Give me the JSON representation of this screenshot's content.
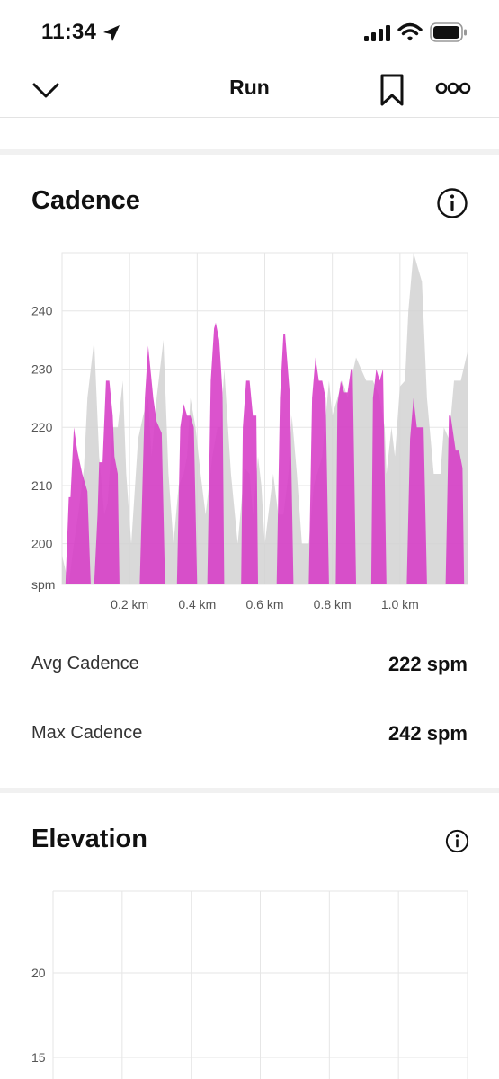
{
  "status_bar": {
    "time": "11:34"
  },
  "nav": {
    "title": "Run"
  },
  "cadence": {
    "title": "Cadence",
    "avg_label": "Avg Cadence",
    "avg_value": "222 spm",
    "max_label": "Max Cadence",
    "max_value": "242 spm"
  },
  "elevation": {
    "title": "Elevation"
  },
  "colors": {
    "cadence_fill": "#d63bc6",
    "comparison_fill": "#d2d2d2",
    "grid": "#e6e6e6"
  },
  "chart_data": [
    {
      "type": "area",
      "x_unit": "km",
      "xlim": [
        0,
        1.2
      ],
      "ylim": [
        193,
        250
      ],
      "x_tick_values": [
        0.2,
        0.4,
        0.6,
        0.8,
        1.0
      ],
      "x_tick_labels": [
        "0.2 km",
        "0.4 km",
        "0.6 km",
        "0.8 km",
        "1.0 km"
      ],
      "y_tick_values": [
        240,
        230,
        220,
        210,
        200
      ],
      "y_tick_labels": [
        "240",
        "230",
        "220",
        "210",
        "200",
        "spm"
      ],
      "grid": true,
      "series": [
        {
          "points": [
            [
              0,
              193
            ],
            [
              0.01,
              193
            ],
            [
              0.02,
              208
            ],
            [
              0.025,
              208
            ],
            [
              0.035,
              220
            ],
            [
              0.045,
              216
            ],
            [
              0.06,
              212
            ],
            [
              0.075,
              209
            ],
            [
              0.085,
              193
            ],
            [
              0.095,
              193
            ],
            [
              0.105,
              205
            ],
            [
              0.11,
              214
            ],
            [
              0.12,
              214
            ],
            [
              0.13,
              228
            ],
            [
              0.14,
              228
            ],
            [
              0.15,
              222
            ],
            [
              0.155,
              215
            ],
            [
              0.165,
              212
            ],
            [
              0.17,
              193
            ],
            [
              0.23,
              193
            ],
            [
              0.245,
              225
            ],
            [
              0.255,
              234
            ],
            [
              0.27,
              225
            ],
            [
              0.28,
              221
            ],
            [
              0.295,
              219
            ],
            [
              0.305,
              193
            ],
            [
              0.34,
              193
            ],
            [
              0.35,
              220
            ],
            [
              0.36,
              224
            ],
            [
              0.37,
              222
            ],
            [
              0.38,
              222
            ],
            [
              0.39,
              220
            ],
            [
              0.4,
              193
            ],
            [
              0.43,
              193
            ],
            [
              0.44,
              228
            ],
            [
              0.45,
              237
            ],
            [
              0.455,
              238
            ],
            [
              0.465,
              235
            ],
            [
              0.475,
              226
            ],
            [
              0.48,
              193
            ],
            [
              0.53,
              193
            ],
            [
              0.535,
              220
            ],
            [
              0.545,
              228
            ],
            [
              0.555,
              228
            ],
            [
              0.565,
              222
            ],
            [
              0.575,
              222
            ],
            [
              0.58,
              193
            ],
            [
              0.635,
              193
            ],
            [
              0.645,
              225
            ],
            [
              0.655,
              236
            ],
            [
              0.66,
              236
            ],
            [
              0.675,
              225
            ],
            [
              0.685,
              193
            ],
            [
              0.73,
              193
            ],
            [
              0.74,
              225
            ],
            [
              0.75,
              232
            ],
            [
              0.76,
              228
            ],
            [
              0.77,
              228
            ],
            [
              0.78,
              225
            ],
            [
              0.79,
              193
            ],
            [
              0.81,
              193
            ],
            [
              0.815,
              224
            ],
            [
              0.825,
              228
            ],
            [
              0.835,
              226
            ],
            [
              0.845,
              226
            ],
            [
              0.855,
              230
            ],
            [
              0.86,
              230
            ],
            [
              0.87,
              193
            ],
            [
              0.915,
              193
            ],
            [
              0.92,
              225
            ],
            [
              0.93,
              230
            ],
            [
              0.94,
              228
            ],
            [
              0.95,
              230
            ],
            [
              0.96,
              193
            ],
            [
              1.02,
              193
            ],
            [
              1.03,
              218
            ],
            [
              1.04,
              225
            ],
            [
              1.05,
              220
            ],
            [
              1.06,
              220
            ],
            [
              1.07,
              220
            ],
            [
              1.08,
              193
            ],
            [
              1.135,
              193
            ],
            [
              1.145,
              222
            ],
            [
              1.15,
              222
            ],
            [
              1.165,
              216
            ],
            [
              1.175,
              216
            ],
            [
              1.185,
              213
            ],
            [
              1.19,
              193
            ],
            [
              1.2,
              193
            ]
          ]
        },
        {
          "points": [
            [
              0,
              198
            ],
            [
              0.02,
              193
            ],
            [
              0.035,
              200
            ],
            [
              0.05,
              206
            ],
            [
              0.065,
              213
            ],
            [
              0.075,
              225
            ],
            [
              0.095,
              235
            ],
            [
              0.11,
              215
            ],
            [
              0.125,
              205
            ],
            [
              0.135,
              207
            ],
            [
              0.15,
              220
            ],
            [
              0.165,
              220
            ],
            [
              0.18,
              228
            ],
            [
              0.19,
              212
            ],
            [
              0.205,
              200
            ],
            [
              0.225,
              218
            ],
            [
              0.24,
              222
            ],
            [
              0.255,
              225
            ],
            [
              0.265,
              215
            ],
            [
              0.28,
              225
            ],
            [
              0.3,
              235
            ],
            [
              0.315,
              212
            ],
            [
              0.33,
              200
            ],
            [
              0.345,
              210
            ],
            [
              0.36,
              212
            ],
            [
              0.37,
              215
            ],
            [
              0.38,
              225
            ],
            [
              0.395,
              220
            ],
            [
              0.41,
              212
            ],
            [
              0.425,
              205
            ],
            [
              0.445,
              215
            ],
            [
              0.46,
              220
            ],
            [
              0.47,
              220
            ],
            [
              0.48,
              230
            ],
            [
              0.5,
              212
            ],
            [
              0.52,
              200
            ],
            [
              0.54,
              213
            ],
            [
              0.555,
              212
            ],
            [
              0.565,
              205
            ],
            [
              0.58,
              215
            ],
            [
              0.59,
              210
            ],
            [
              0.6,
              200
            ],
            [
              0.625,
              212
            ],
            [
              0.64,
              205
            ],
            [
              0.655,
              205
            ],
            [
              0.67,
              212
            ],
            [
              0.68,
              222
            ],
            [
              0.695,
              212
            ],
            [
              0.71,
              200
            ],
            [
              0.73,
              200
            ],
            [
              0.745,
              210
            ],
            [
              0.77,
              215
            ],
            [
              0.79,
              228
            ],
            [
              0.8,
              222
            ],
            [
              0.815,
              225
            ],
            [
              0.83,
              228
            ],
            [
              0.845,
              225
            ],
            [
              0.855,
              228
            ],
            [
              0.87,
              232
            ],
            [
              0.885,
              230
            ],
            [
              0.9,
              228
            ],
            [
              0.92,
              228
            ],
            [
              0.94,
              225
            ],
            [
              0.955,
              220
            ],
            [
              0.96,
              212
            ],
            [
              0.975,
              220
            ],
            [
              0.985,
              215
            ],
            [
              1.0,
              227
            ],
            [
              1.015,
              228
            ],
            [
              1.025,
              240
            ],
            [
              1.04,
              250
            ],
            [
              1.065,
              245
            ],
            [
              1.08,
              225
            ],
            [
              1.1,
              212
            ],
            [
              1.12,
              212
            ],
            [
              1.13,
              220
            ],
            [
              1.145,
              218
            ],
            [
              1.16,
              228
            ],
            [
              1.18,
              228
            ],
            [
              1.2,
              233
            ],
            [
              1.2,
              193
            ]
          ]
        }
      ]
    },
    {
      "type": "area",
      "y_tick_values": [
        20,
        15
      ],
      "y_tick_labels": [
        "20",
        "15"
      ],
      "grid": true,
      "series": []
    }
  ]
}
